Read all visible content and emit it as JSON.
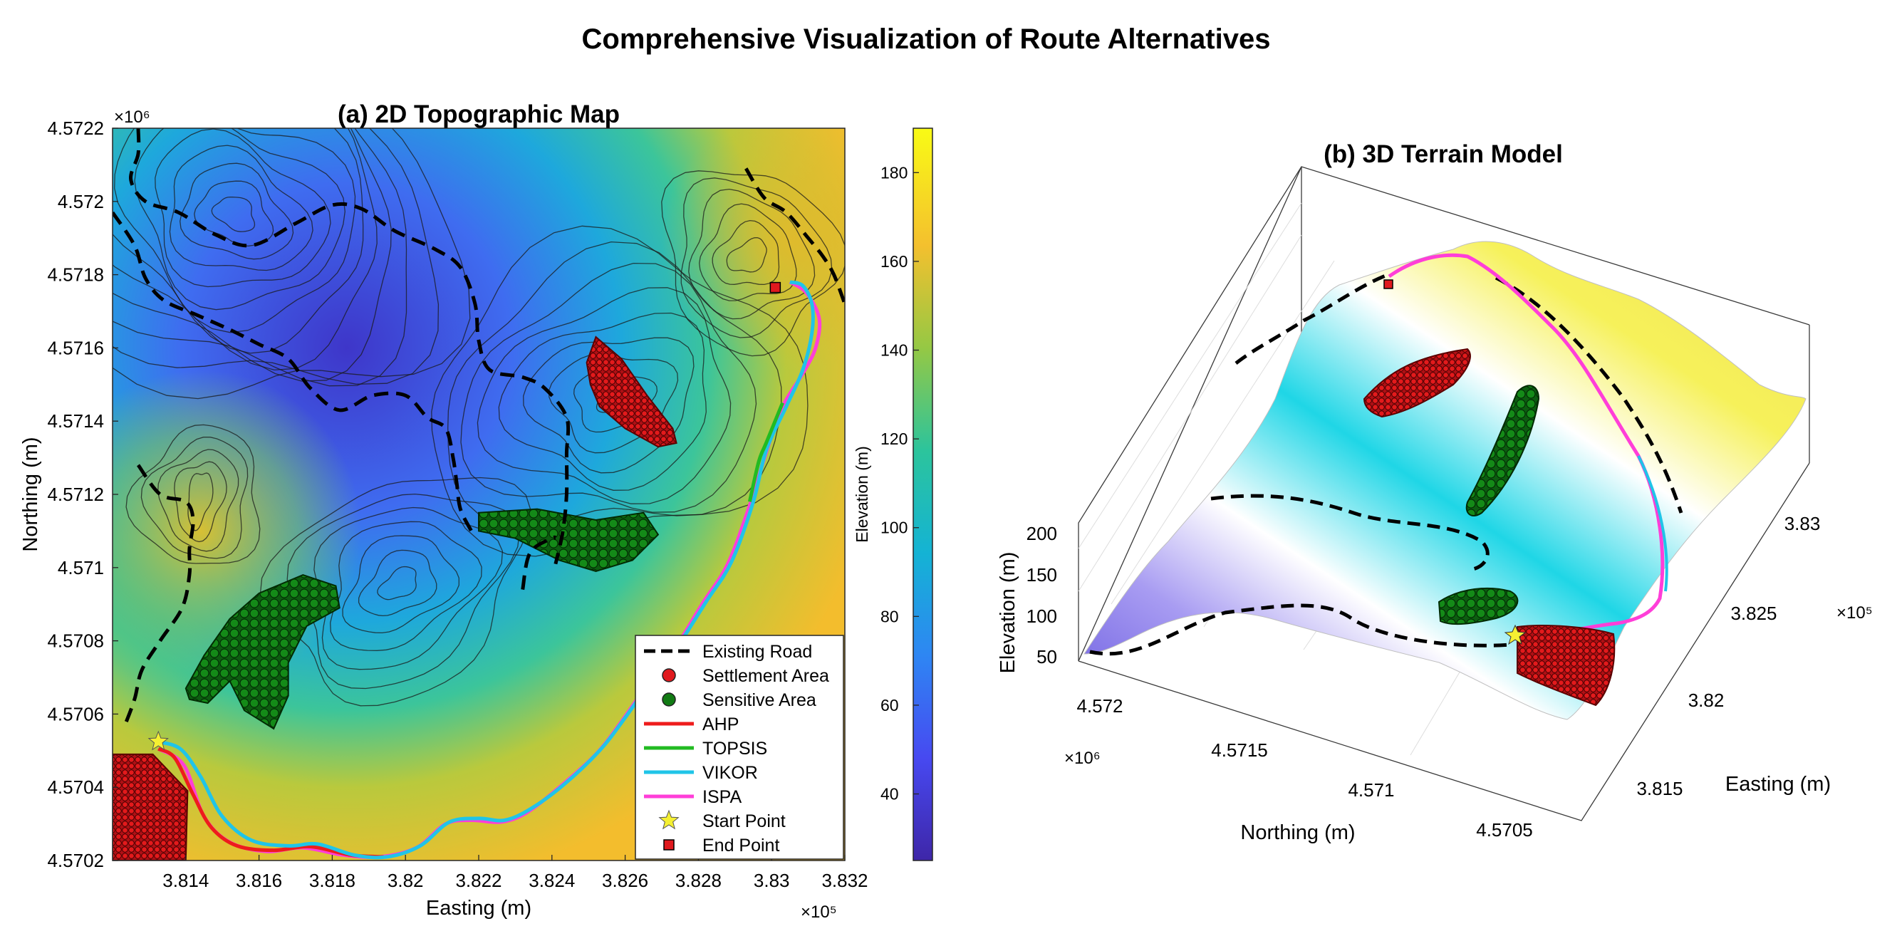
{
  "figure": {
    "title": "Comprehensive Visualization of Route Alternatives"
  },
  "chart_data": [
    {
      "type": "heatmap",
      "title": "(a) 2D Topographic Map",
      "xlabel": "Easting (m)",
      "ylabel": "Northing (m)",
      "x_multiplier": "×10⁵",
      "y_multiplier": "×10⁶",
      "xlim": [
        381200,
        383200
      ],
      "ylim": [
        4570200,
        4572200
      ],
      "x_ticks": [
        "3.814",
        "3.816",
        "3.818",
        "3.82",
        "3.822",
        "3.824",
        "3.826",
        "3.828",
        "3.83",
        "3.832"
      ],
      "y_ticks": [
        "4.5702",
        "4.5704",
        "4.5706",
        "4.5708",
        "4.571",
        "4.5712",
        "4.5714",
        "4.5716",
        "4.5718",
        "4.572",
        "4.5722"
      ],
      "colorbar": {
        "label": "Elevation (m)",
        "range": [
          25,
          190
        ],
        "ticks": [
          "40",
          "60",
          "80",
          "100",
          "120",
          "140",
          "160",
          "180"
        ],
        "colormap": "parula"
      },
      "legend": {
        "location": "bottom-right",
        "entries": [
          {
            "label": "Existing Road",
            "style": "dashed-line",
            "color": "#000000"
          },
          {
            "label": "Settlement Area",
            "style": "circle",
            "color": "#e0191e"
          },
          {
            "label": "Sensitive Area",
            "style": "circle",
            "color": "#127b14"
          },
          {
            "label": "AHP",
            "style": "line",
            "color": "#ee1c1c"
          },
          {
            "label": "TOPSIS",
            "style": "line",
            "color": "#22bb22"
          },
          {
            "label": "VIKOR",
            "style": "line",
            "color": "#20c4e8"
          },
          {
            "label": "ISPA",
            "style": "line",
            "color": "#ff3ed8"
          },
          {
            "label": "Start Point",
            "style": "star",
            "color": "#f5f032"
          },
          {
            "label": "End Point",
            "style": "square",
            "color": "#e0191e"
          }
        ]
      },
      "routes": {
        "ISPA": [
          [
            381325,
            4570505
          ],
          [
            381395,
            4570460
          ],
          [
            381450,
            4570320
          ],
          [
            381520,
            4570250
          ],
          [
            381620,
            4570225
          ],
          [
            381720,
            4570235
          ],
          [
            381830,
            4570215
          ],
          [
            381930,
            4570210
          ],
          [
            382030,
            4570235
          ],
          [
            382110,
            4570300
          ],
          [
            382180,
            4570310
          ],
          [
            382260,
            4570305
          ],
          [
            382330,
            4570330
          ],
          [
            382420,
            4570400
          ],
          [
            382520,
            4570490
          ],
          [
            382590,
            4570580
          ],
          [
            382660,
            4570680
          ],
          [
            382730,
            4570770
          ],
          [
            382810,
            4570900
          ],
          [
            382880,
            4571010
          ],
          [
            382940,
            4571170
          ],
          [
            382990,
            4571330
          ],
          [
            383030,
            4571440
          ],
          [
            383085,
            4571530
          ],
          [
            383120,
            4571600
          ],
          [
            383130,
            4571680
          ],
          [
            383095,
            4571750
          ],
          [
            383050,
            4571780
          ]
        ],
        "AHP": [
          [
            381325,
            4570505
          ],
          [
            381370,
            4570480
          ],
          [
            381420,
            4570380
          ],
          [
            381470,
            4570290
          ],
          [
            381540,
            4570240
          ],
          [
            381640,
            4570228
          ],
          [
            381740,
            4570238
          ],
          [
            381850,
            4570215
          ],
          [
            381940,
            4570210
          ]
        ],
        "VIKOR": [
          [
            381320,
            4570525
          ],
          [
            381385,
            4570505
          ],
          [
            381440,
            4570430
          ],
          [
            381500,
            4570320
          ],
          [
            381580,
            4570255
          ],
          [
            381680,
            4570240
          ],
          [
            381760,
            4570245
          ],
          [
            381860,
            4570215
          ],
          [
            381950,
            4570210
          ],
          [
            382040,
            4570240
          ],
          [
            382120,
            4570305
          ],
          [
            382200,
            4570315
          ],
          [
            382270,
            4570310
          ],
          [
            382340,
            4570340
          ],
          [
            382430,
            4570405
          ],
          [
            382530,
            4570500
          ],
          [
            382600,
            4570590
          ],
          [
            382670,
            4570690
          ],
          [
            382740,
            4570780
          ],
          [
            382820,
            4570905
          ],
          [
            382890,
            4571015
          ],
          [
            382950,
            4571180
          ],
          [
            382985,
            4571320
          ],
          [
            383040,
            4571440
          ],
          [
            383085,
            4571540
          ],
          [
            383110,
            4571640
          ],
          [
            383110,
            4571720
          ],
          [
            383085,
            4571770
          ],
          [
            383050,
            4571780
          ]
        ],
        "TOPSIS": [
          [
            382940,
            4571180
          ],
          [
            382965,
            4571290
          ],
          [
            382985,
            4571340
          ],
          [
            383030,
            4571450
          ]
        ]
      },
      "existing_road": [
        [
          [
            381270,
            4571280
          ],
          [
            381330,
            4571200
          ],
          [
            381400,
            4571180
          ],
          [
            381420,
            4571130
          ],
          [
            381410,
            4571050
          ],
          [
            381410,
            4570980
          ],
          [
            381390,
            4570890
          ],
          [
            381330,
            4570800
          ],
          [
            381280,
            4570720
          ],
          [
            381260,
            4570640
          ],
          [
            381230,
            4570560
          ]
        ],
        [
          [
            381200,
            4571970
          ],
          [
            381260,
            4571880
          ],
          [
            381290,
            4571790
          ],
          [
            381340,
            4571730
          ],
          [
            381430,
            4571690
          ],
          [
            381520,
            4571650
          ],
          [
            381600,
            4571610
          ],
          [
            381680,
            4571570
          ],
          [
            381740,
            4571490
          ],
          [
            381820,
            4571430
          ],
          [
            381910,
            4571470
          ],
          [
            382000,
            4571470
          ],
          [
            382060,
            4571410
          ],
          [
            382110,
            4571380
          ],
          [
            382130,
            4571300
          ],
          [
            382140,
            4571230
          ],
          [
            382150,
            4571160
          ],
          [
            382180,
            4571100
          ]
        ],
        [
          [
            381270,
            4572200
          ],
          [
            381270,
            4572130
          ],
          [
            381250,
            4572060
          ],
          [
            381290,
            4572000
          ],
          [
            381380,
            4571970
          ],
          [
            381480,
            4571910
          ],
          [
            381580,
            4571880
          ],
          [
            381700,
            4571940
          ],
          [
            381800,
            4571990
          ],
          [
            381880,
            4571980
          ],
          [
            381970,
            4571920
          ],
          [
            382080,
            4571870
          ],
          [
            382150,
            4571820
          ],
          [
            382190,
            4571720
          ],
          [
            382200,
            4571620
          ],
          [
            382230,
            4571540
          ],
          [
            382320,
            4571520
          ],
          [
            382380,
            4571490
          ],
          [
            382440,
            4571410
          ],
          [
            382440,
            4571310
          ],
          [
            382440,
            4571200
          ],
          [
            382430,
            4571100
          ],
          [
            382410,
            4571010
          ]
        ],
        [
          [
            382320,
            4570940
          ],
          [
            382340,
            4571040
          ],
          [
            382400,
            4571080
          ],
          [
            382410,
            4571080
          ]
        ],
        [
          [
            382930,
            4572090
          ],
          [
            382980,
            4572010
          ],
          [
            383040,
            4571970
          ],
          [
            383100,
            4571900
          ],
          [
            383140,
            4571850
          ],
          [
            383170,
            4571800
          ],
          [
            383200,
            4571720
          ]
        ]
      ],
      "settlements": [
        {
          "name": "north-east settlement",
          "polygon": [
            [
              382520,
              4571630
            ],
            [
              382590,
              4571570
            ],
            [
              382660,
              4571470
            ],
            [
              382730,
              4571380
            ],
            [
              382740,
              4571340
            ],
            [
              382690,
              4571330
            ],
            [
              382600,
              4571380
            ],
            [
              382530,
              4571440
            ],
            [
              382505,
              4571500
            ],
            [
              382495,
              4571560
            ]
          ]
        },
        {
          "name": "south-west settlement",
          "polygon": [
            [
              381200,
              4570490
            ],
            [
              381310,
              4570490
            ],
            [
              381405,
              4570390
            ],
            [
              381400,
              4570200
            ],
            [
              381200,
              4570200
            ]
          ]
        }
      ],
      "sensitive_areas": [
        {
          "name": "central-east sensitive area",
          "polygon": [
            [
              382200,
              4571150
            ],
            [
              382360,
              4571160
            ],
            [
              382520,
              4571130
            ],
            [
              382650,
              4571150
            ],
            [
              382690,
              4571090
            ],
            [
              382620,
              4571020
            ],
            [
              382520,
              4570990
            ],
            [
              382420,
              4571020
            ],
            [
              382300,
              4571080
            ],
            [
              382200,
              4571100
            ]
          ]
        },
        {
          "name": "south-west sensitive area",
          "polygon": [
            [
              381400,
              4570670
            ],
            [
              381450,
              4570760
            ],
            [
              381520,
              4570860
            ],
            [
              381600,
              4570930
            ],
            [
              381720,
              4570980
            ],
            [
              381810,
              4570950
            ],
            [
              381820,
              4570890
            ],
            [
              381730,
              4570840
            ],
            [
              381680,
              4570740
            ],
            [
              381680,
              4570650
            ],
            [
              381640,
              4570560
            ],
            [
              381560,
              4570610
            ],
            [
              381520,
              4570690
            ],
            [
              381460,
              4570630
            ],
            [
              381410,
              4570640
            ]
          ]
        }
      ],
      "start_point": {
        "easting": 381325,
        "northing": 4570525
      },
      "end_point": {
        "easting": 383010,
        "northing": 4571765
      }
    },
    {
      "type": "surface",
      "title": "(b) 3D Terrain Model",
      "xlabel": "Easting (m)",
      "ylabel": "Northing (m)",
      "zlabel": "Elevation (m)",
      "x_multiplier": "×10⁵",
      "y_multiplier": "×10⁶",
      "x_ticks": [
        "3.815",
        "3.82",
        "3.825",
        "3.83"
      ],
      "y_ticks": [
        "4.5705",
        "4.571",
        "4.5715",
        "4.572"
      ],
      "z_ticks": [
        "50",
        "100",
        "150",
        "200"
      ]
    }
  ]
}
